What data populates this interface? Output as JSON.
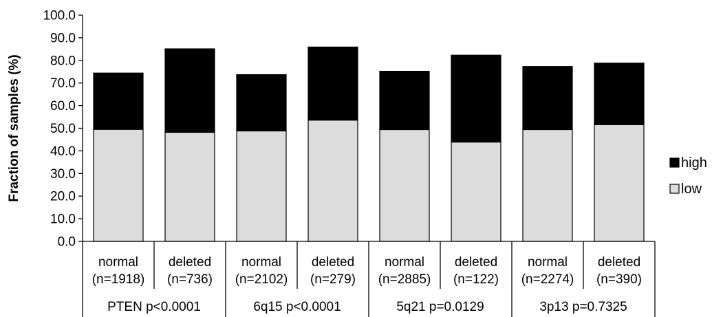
{
  "chart_data": {
    "type": "bar",
    "stacked": true,
    "ylabel": "Fraction of samples (%)",
    "xlabel": "",
    "ylim": [
      0,
      100
    ],
    "yticks": [
      "0.0",
      "10.0",
      "20.0",
      "30.0",
      "40.0",
      "50.0",
      "60.0",
      "70.0",
      "80.0",
      "90.0",
      "100.0"
    ],
    "categories": [
      {
        "label": "normal",
        "n": "(n=1918)"
      },
      {
        "label": "deleted",
        "n": "(n=736)"
      },
      {
        "label": "normal",
        "n": "(n=2102)"
      },
      {
        "label": "deleted",
        "n": "(n=279)"
      },
      {
        "label": "normal",
        "n": "(n=2885)"
      },
      {
        "label": "deleted",
        "n": "(n=122)"
      },
      {
        "label": "normal",
        "n": "(n=2274)"
      },
      {
        "label": "deleted",
        "n": "(n=390)"
      }
    ],
    "groups": [
      "PTEN p<0.0001",
      "6q15 p<0.0001",
      "5q21 p=0.0129",
      "3p13 p=0.7325"
    ],
    "series": [
      {
        "name": "low",
        "color": "#dcdcdc",
        "values": [
          49.5,
          48.2,
          48.8,
          53.6,
          49.4,
          43.9,
          49.4,
          51.6
        ]
      },
      {
        "name": "high",
        "color": "#000000",
        "values": [
          24.9,
          36.9,
          24.9,
          32.3,
          25.8,
          38.4,
          27.9,
          27.2
        ]
      }
    ],
    "legend": {
      "placement": "right",
      "order": [
        "high",
        "low"
      ]
    },
    "grid": false
  }
}
